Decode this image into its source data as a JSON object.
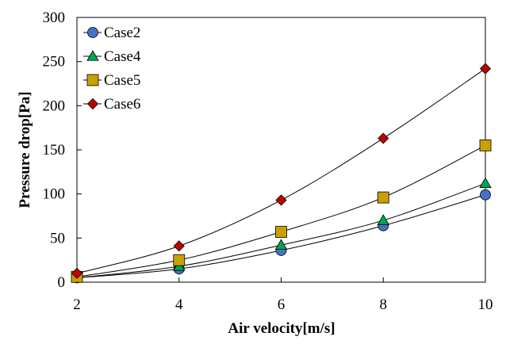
{
  "chart_data": {
    "type": "line",
    "title": "",
    "xlabel": "Air velocity[m/s]",
    "ylabel": "Pressure drop[Pa]",
    "xlim": [
      2,
      10
    ],
    "ylim": [
      0,
      300
    ],
    "xticks": [
      2,
      4,
      6,
      8,
      10
    ],
    "yticks": [
      0,
      50,
      100,
      150,
      200,
      250,
      300
    ],
    "legend_position": "top-left",
    "series": [
      {
        "name": "Case2",
        "marker": "circle",
        "color": "#4472C4",
        "x": [
          2,
          4,
          6,
          8,
          10
        ],
        "y": [
          5,
          15,
          36,
          64,
          99
        ]
      },
      {
        "name": "Case4",
        "marker": "triangle",
        "color": "#00A650",
        "x": [
          2,
          4,
          6,
          8,
          10
        ],
        "y": [
          5,
          18,
          42,
          70,
          112
        ]
      },
      {
        "name": "Case5",
        "marker": "square",
        "color": "#C9A000",
        "x": [
          2,
          4,
          6,
          8,
          10
        ],
        "y": [
          6,
          25,
          57,
          96,
          155
        ]
      },
      {
        "name": "Case6",
        "marker": "diamond",
        "color": "#C00000",
        "x": [
          2,
          4,
          6,
          8,
          10
        ],
        "y": [
          10,
          41,
          93,
          163,
          242
        ]
      }
    ]
  }
}
